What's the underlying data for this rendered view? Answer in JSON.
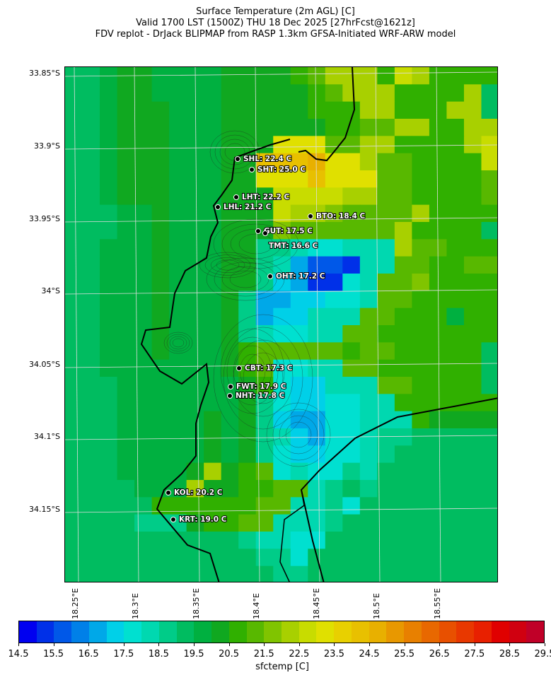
{
  "title": {
    "line1": "Surface Temperature (2m AGL) [C]",
    "line2": "Valid 1700 LST (1500Z) THU 18 Dec 2025 [27hrFcst@1621z]",
    "line3": "FDV replot - DrJack BLIPMAP from RASP 1.3km GFSA-Initiated WRF-ARW model"
  },
  "axes": {
    "lat_ticks": [
      "33.85°S",
      "33.9°S",
      "33.95°S",
      "34°S",
      "34.05°S",
      "34.1°S",
      "34.15°S"
    ],
    "lon_ticks": [
      "18.25°E",
      "18.3°E",
      "18.35°E",
      "18.4°E",
      "18.45°E",
      "18.5°E",
      "18.55°E"
    ]
  },
  "stations": [
    {
      "id": "SHL",
      "label": "SHL: 22.4 C"
    },
    {
      "id": "SHT",
      "label": "SHT: 25.0 C"
    },
    {
      "id": "LHT",
      "label": "LHT: 22.2 C"
    },
    {
      "id": "LHL",
      "label": "LHL: 21.2 C"
    },
    {
      "id": "BTO",
      "label": "BTO: 18.4 C"
    },
    {
      "id": "GUT",
      "label": "GUT: 17.5 C"
    },
    {
      "id": "TMT",
      "label": "TMT: 16.6 C"
    },
    {
      "id": "OHT",
      "label": "OHT: 17.2 C"
    },
    {
      "id": "CBT",
      "label": "CBT: 17.3 C"
    },
    {
      "id": "FWT",
      "label": "FWT: 17.9 C"
    },
    {
      "id": "NHT",
      "label": "NHT: 17.8 C"
    },
    {
      "id": "KOL",
      "label": "KOL: 20.2 C"
    },
    {
      "id": "KRT",
      "label": "KRT: 19.0 C"
    }
  ],
  "colorbar": {
    "label": "sfctemp [C]",
    "ticks": [
      "14.5",
      "15.5",
      "16.5",
      "17.5",
      "18.5",
      "19.5",
      "20.5",
      "21.5",
      "22.5",
      "23.5",
      "24.5",
      "25.5",
      "26.5",
      "27.5",
      "28.5",
      "29.5"
    ],
    "colors": [
      "#0000f0",
      "#0030e8",
      "#0058e8",
      "#0080e8",
      "#00a8e8",
      "#00d0e8",
      "#00e0d0",
      "#00d8b0",
      "#00cc88",
      "#00bc60",
      "#00b040",
      "#10a820",
      "#30b000",
      "#58b800",
      "#80c400",
      "#a8d000",
      "#c8dc00",
      "#e0e000",
      "#e8d000",
      "#e8c000",
      "#e8b000",
      "#e89800",
      "#e88000",
      "#e86800",
      "#e85000",
      "#e83800",
      "#e82000",
      "#e00000",
      "#d00010",
      "#c00028"
    ]
  }
}
